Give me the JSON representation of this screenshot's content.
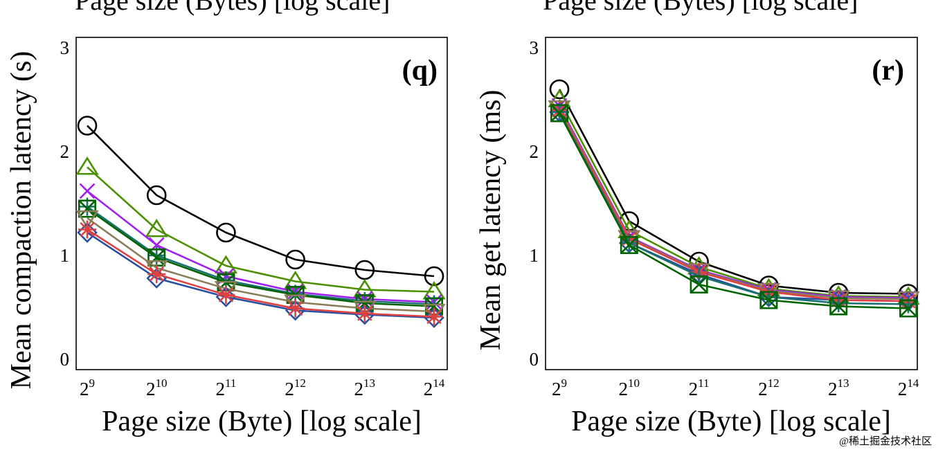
{
  "top_fragment": {
    "left": "Page size (Bytes) [log scale]",
    "right": "Page size (Bytes) [log scale]"
  },
  "watermark": "@稀土掘金技术社区",
  "chart_data": [
    {
      "type": "line",
      "panel_label": "(q)",
      "ylabel": "Mean compaction latency (s)",
      "xlabel": "Page size (Byte) [log scale]",
      "x_scale": "log2",
      "x_ticks": [
        {
          "base": "2",
          "exp": "9"
        },
        {
          "base": "2",
          "exp": "10"
        },
        {
          "base": "2",
          "exp": "11"
        },
        {
          "base": "2",
          "exp": "12"
        },
        {
          "base": "2",
          "exp": "13"
        },
        {
          "base": "2",
          "exp": "14"
        }
      ],
      "y_ticks": [
        "0",
        "1",
        "2",
        "3"
      ],
      "ylim": [
        -0.1,
        3.1
      ],
      "series": [
        {
          "name": "black-circle",
          "color": "#000000",
          "marker": "circle",
          "values": [
            2.25,
            1.58,
            1.22,
            0.96,
            0.86,
            0.8
          ]
        },
        {
          "name": "olive-triangle",
          "color": "#4a9000",
          "marker": "triangle",
          "values": [
            1.85,
            1.25,
            0.9,
            0.75,
            0.67,
            0.65
          ]
        },
        {
          "name": "purple-x",
          "color": "#a020f0",
          "marker": "x",
          "values": [
            1.62,
            1.1,
            0.8,
            0.65,
            0.58,
            0.55
          ]
        },
        {
          "name": "teal-plus",
          "color": "#1a7070",
          "marker": "plus",
          "values": [
            1.47,
            1.0,
            0.76,
            0.63,
            0.56,
            0.53
          ]
        },
        {
          "name": "green-square",
          "color": "#006400",
          "marker": "square-x",
          "values": [
            1.45,
            0.98,
            0.74,
            0.62,
            0.54,
            0.51
          ]
        },
        {
          "name": "tan-triangle",
          "color": "#8b7d5a",
          "marker": "triangle-down",
          "values": [
            1.36,
            0.88,
            0.68,
            0.55,
            0.49,
            0.46
          ]
        },
        {
          "name": "blue-diamond",
          "color": "#2850a0",
          "marker": "diamond",
          "values": [
            1.22,
            0.78,
            0.6,
            0.47,
            0.43,
            0.4
          ]
        },
        {
          "name": "red-star",
          "color": "#e04040",
          "marker": "star",
          "values": [
            1.25,
            0.82,
            0.62,
            0.49,
            0.44,
            0.41
          ]
        }
      ]
    },
    {
      "type": "line",
      "panel_label": "(r)",
      "ylabel": "Mean get latency (ms)",
      "xlabel": "Page size (Byte) [log scale]",
      "x_scale": "log2",
      "x_ticks": [
        {
          "base": "2",
          "exp": "9"
        },
        {
          "base": "2",
          "exp": "10"
        },
        {
          "base": "2",
          "exp": "11"
        },
        {
          "base": "2",
          "exp": "12"
        },
        {
          "base": "2",
          "exp": "13"
        },
        {
          "base": "2",
          "exp": "14"
        }
      ],
      "y_ticks": [
        "0",
        "1",
        "2",
        "3"
      ],
      "ylim": [
        -0.1,
        3.1
      ],
      "series": [
        {
          "name": "black-circle",
          "color": "#000000",
          "marker": "circle",
          "values": [
            2.6,
            1.33,
            0.94,
            0.71,
            0.64,
            0.63
          ]
        },
        {
          "name": "olive-triangle",
          "color": "#4a9000",
          "marker": "triangle",
          "values": [
            2.5,
            1.24,
            0.89,
            0.68,
            0.61,
            0.6
          ]
        },
        {
          "name": "purple-x",
          "color": "#a020f0",
          "marker": "x",
          "values": [
            2.44,
            1.18,
            0.86,
            0.67,
            0.6,
            0.59
          ]
        },
        {
          "name": "tan-triangle",
          "color": "#8b7d5a",
          "marker": "triangle-down",
          "values": [
            2.42,
            1.17,
            0.85,
            0.66,
            0.59,
            0.58
          ]
        },
        {
          "name": "blue-diamond",
          "color": "#2850a0",
          "marker": "diamond",
          "values": [
            2.38,
            1.12,
            0.82,
            0.6,
            0.57,
            0.56
          ]
        },
        {
          "name": "red-star",
          "color": "#e04040",
          "marker": "star",
          "values": [
            2.4,
            1.16,
            0.84,
            0.65,
            0.57,
            0.56
          ]
        },
        {
          "name": "teal-plus",
          "color": "#1a7070",
          "marker": "plus",
          "values": [
            2.38,
            1.12,
            0.8,
            0.6,
            0.54,
            0.53
          ]
        },
        {
          "name": "green-square",
          "color": "#006400",
          "marker": "square-x",
          "values": [
            2.37,
            1.1,
            0.72,
            0.57,
            0.51,
            0.49
          ]
        }
      ]
    }
  ]
}
